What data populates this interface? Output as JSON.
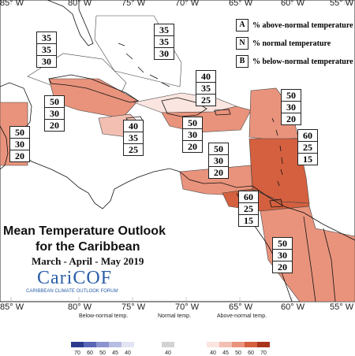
{
  "map": {
    "title_line1": "Mean Temperature Outlook",
    "title_line2": "for the Caribbean",
    "period": "March - April - May 2019",
    "logo_text": "CariCOF",
    "logo_subtext": "CARIBBEAN CLIMATE OUTLOOK FORUM"
  },
  "longitudes_top": [
    "85° W",
    "80° W",
    "75° W",
    "70° W",
    "65° W",
    "60° W",
    "55° W"
  ],
  "longitudes_bottom": [
    "85° W",
    "80° W",
    "75° W",
    "70° W",
    "65° W",
    "60° W",
    "55° W"
  ],
  "key": [
    {
      "letter": "A",
      "text": "% above-normal temperature"
    },
    {
      "letter": "N",
      "text": "% normal temperature"
    },
    {
      "letter": "B",
      "text": "% below-normal temperature"
    }
  ],
  "probability_boxes": [
    {
      "id": "bahamas",
      "values": [
        "35",
        "35",
        "30"
      ]
    },
    {
      "id": "western-bahamas",
      "values": [
        "35",
        "35",
        "30"
      ]
    },
    {
      "id": "hispaniola-north",
      "values": [
        "40",
        "35",
        "25"
      ]
    },
    {
      "id": "cuba-east",
      "values": [
        "50",
        "30",
        "20"
      ]
    },
    {
      "id": "belize",
      "values": [
        "50",
        "30",
        "20"
      ]
    },
    {
      "id": "jamaica",
      "values": [
        "40",
        "35",
        "25"
      ]
    },
    {
      "id": "hispaniola-south",
      "values": [
        "50",
        "30",
        "20"
      ]
    },
    {
      "id": "north-leewards",
      "values": [
        "50",
        "30",
        "20"
      ]
    },
    {
      "id": "leewards",
      "values": [
        "60",
        "25",
        "15"
      ]
    },
    {
      "id": "puerto-rico",
      "values": [
        "50",
        "30",
        "20"
      ]
    },
    {
      "id": "southern-caribbean",
      "values": [
        "60",
        "25",
        "15"
      ]
    },
    {
      "id": "guianas",
      "values": [
        "50",
        "30",
        "20"
      ]
    }
  ],
  "colorbar": {
    "below_label": "Below-normal temp.",
    "normal_label": "Normal temp.",
    "above_label": "Above-normal temp.",
    "below_ticks": [
      "70",
      "60",
      "50",
      "45",
      "40"
    ],
    "normal_ticks": [
      "40"
    ],
    "above_ticks": [
      "40",
      "45",
      "50",
      "60",
      "70"
    ],
    "below_colors": [
      "#2b3a8c",
      "#5a66b5",
      "#8c94cf",
      "#b8bde3",
      "#e3e5f4"
    ],
    "normal_color": "#d3d3d3",
    "above_colors": [
      "#fae5e0",
      "#f3bfb2",
      "#e9937c",
      "#d4603f",
      "#a9351c"
    ]
  },
  "colors": {
    "above40": "#fae5e0",
    "above50": "#e9937c",
    "above60": "#d4603f",
    "normal": "#d3d3d3"
  }
}
